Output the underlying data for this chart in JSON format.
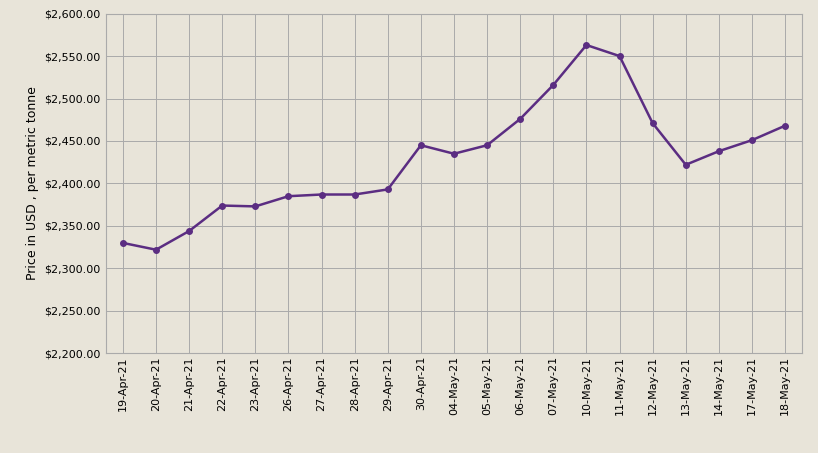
{
  "dates": [
    "19-Apr-21",
    "20-Apr-21",
    "21-Apr-21",
    "22-Apr-21",
    "23-Apr-21",
    "26-Apr-21",
    "27-Apr-21",
    "28-Apr-21",
    "29-Apr-21",
    "30-Apr-21",
    "04-May-21",
    "05-May-21",
    "06-May-21",
    "07-May-21",
    "10-May-21",
    "11-May-21",
    "12-May-21",
    "13-May-21",
    "14-May-21",
    "17-May-21",
    "18-May-21"
  ],
  "values": [
    2330,
    2322,
    2344,
    2374,
    2373,
    2385,
    2387,
    2387,
    2393,
    2445,
    2435,
    2445,
    2476,
    2516,
    2563,
    2550,
    2471,
    2422,
    2438,
    2451,
    2468
  ],
  "line_color": "#5B2D82",
  "marker_color": "#5B2D82",
  "bg_color": "#E8E4D9",
  "plot_bg_color": "#E8E4D9",
  "grid_color": "#AAAAAA",
  "spine_color": "#AAAAAA",
  "ylabel": "Price in USD , per metric tonne",
  "ylim_min": 2200,
  "ylim_max": 2600,
  "ytick_step": 50,
  "ylabel_fontsize": 9,
  "tick_fontsize": 8,
  "linewidth": 1.8,
  "markersize": 4
}
